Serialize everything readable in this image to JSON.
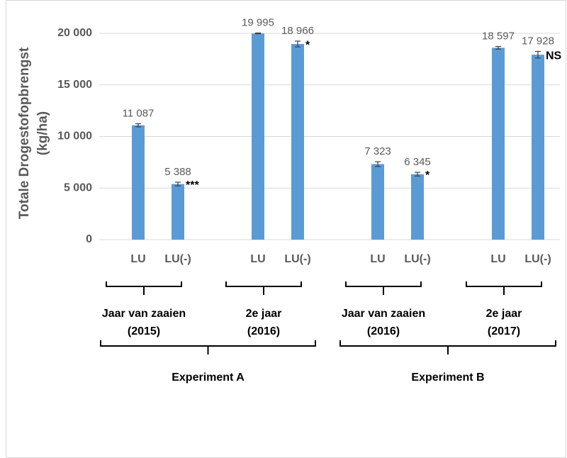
{
  "chart_data": {
    "type": "bar",
    "y_label": [
      "Totale Drogestofopbrengst",
      "(kg/ha)"
    ],
    "categories": [
      "LU",
      "LU(-)",
      "LU",
      "LU(-)",
      "LU",
      "LU(-)",
      "LU",
      "LU(-)"
    ],
    "values": [
      11087,
      5388,
      19995,
      18966,
      7323,
      6345,
      18597,
      17928
    ],
    "value_labels": [
      "11 087",
      "5 388",
      "19 995",
      "18 966",
      "7 323",
      "6 345",
      "18 597",
      "17 928"
    ],
    "errors": [
      150,
      180,
      40,
      280,
      230,
      180,
      130,
      320
    ],
    "significance": [
      null,
      "***",
      null,
      "*",
      null,
      "*",
      null,
      "NS"
    ],
    "color": "#5b9bd5",
    "groups": [
      [
        "Jaar van zaaien",
        "(2015)"
      ],
      [
        "2e jaar",
        "(2016)"
      ],
      [
        "Jaar van zaaien",
        "(2016)"
      ],
      [
        "2e jaar",
        "(2017)"
      ]
    ],
    "experiments": [
      "Experiment A",
      "Experiment B"
    ],
    "ylim": [
      0,
      20000
    ],
    "yticks": [
      0,
      {
        "value": 5000,
        "label": "5 000"
      },
      {
        "value": 10000,
        "label": "10 000"
      },
      {
        "value": 15000,
        "label": "15 000"
      },
      {
        "value": 20000,
        "label": "20 000"
      }
    ],
    "grid": true
  }
}
